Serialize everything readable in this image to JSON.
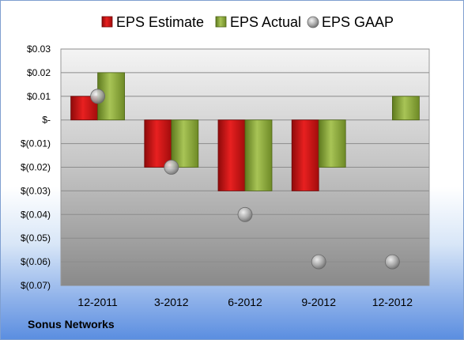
{
  "company": "Sonus Networks",
  "chart_data": {
    "type": "bar",
    "categories": [
      "12-2011",
      "3-2012",
      "6-2012",
      "9-2012",
      "12-2012"
    ],
    "series": [
      {
        "name": "EPS Estimate",
        "type": "bar",
        "color": "#d01010",
        "values": [
          0.01,
          -0.02,
          -0.03,
          -0.03,
          null
        ]
      },
      {
        "name": "EPS Actual",
        "type": "bar",
        "color": "#80a030",
        "values": [
          0.02,
          -0.02,
          -0.03,
          -0.02,
          0.01
        ]
      },
      {
        "name": "EPS GAAP",
        "type": "scatter",
        "color": "#a8a8a8",
        "values": [
          0.01,
          -0.02,
          -0.04,
          -0.06,
          -0.06
        ]
      }
    ],
    "ylim": [
      -0.07,
      0.03
    ],
    "yticks": [
      0.03,
      0.02,
      0.01,
      0,
      -0.01,
      -0.02,
      -0.03,
      -0.04,
      -0.05,
      -0.06,
      -0.07
    ],
    "ytick_labels": [
      "$0.03",
      "$0.02",
      "$0.01",
      "$-",
      "$(0.01)",
      "$(0.02)",
      "$(0.03)",
      "$(0.04)",
      "$(0.05)",
      "$(0.06)",
      "$(0.07)"
    ],
    "grid": true,
    "legend_position": "top"
  }
}
